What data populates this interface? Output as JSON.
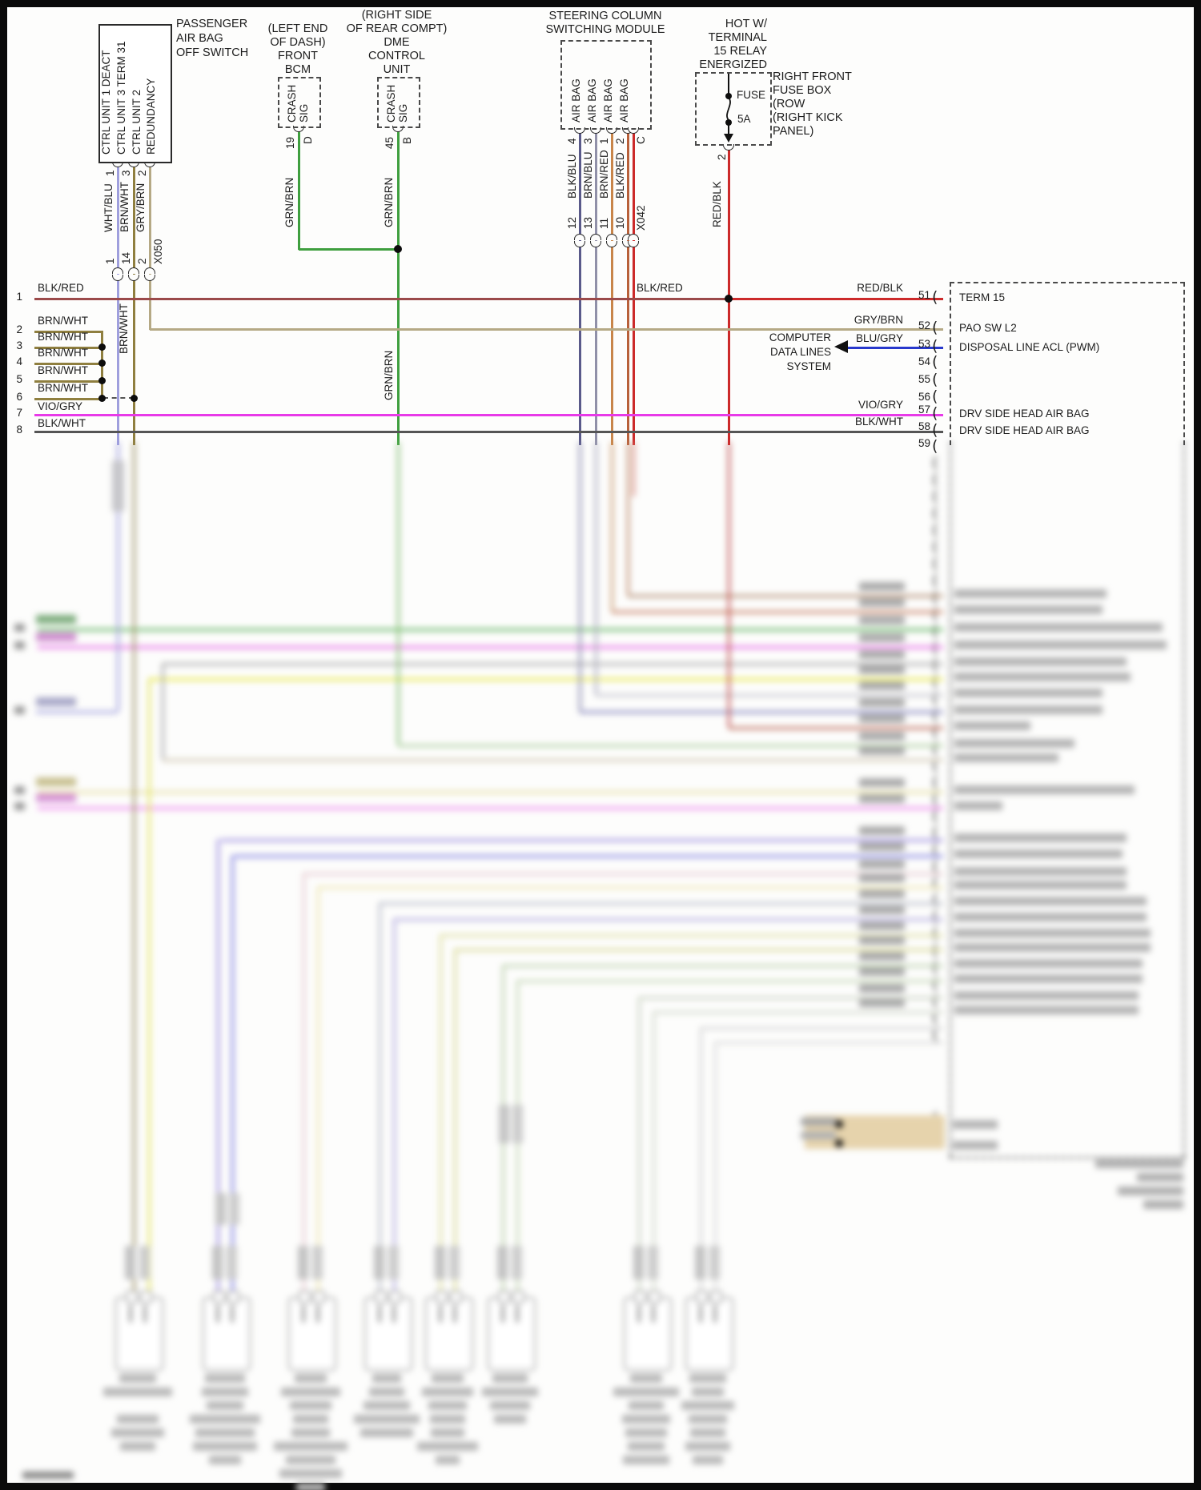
{
  "passenger_switch": {
    "title": [
      "PASSENGER",
      "AIR BAG",
      "OFF SWITCH"
    ],
    "terminals": [
      "CTRL UNIT 1 DEACT",
      "CTRL UNIT 3 TERM 31",
      "CTRL UNIT 2",
      "REDUNDANCY"
    ],
    "pins": [
      "1",
      "3",
      "2"
    ],
    "wire_colors": [
      "WHT/BLU",
      "BRN/WHT",
      "GRY/BRN"
    ],
    "connector_pins": [
      "1",
      "14",
      "2"
    ],
    "connector_id": "X050"
  },
  "front_bcm": {
    "location": [
      "(LEFT END",
      "OF DASH)"
    ],
    "name": [
      "FRONT",
      "BCM"
    ],
    "terminal": [
      "CRASH",
      "SIG"
    ],
    "pin": "19",
    "terminal_letter": "D",
    "wire_color": "GRN/BRN"
  },
  "dme": {
    "location": [
      "(RIGHT SIDE",
      "OF REAR COMPT)"
    ],
    "name": [
      "DME",
      "CONTROL",
      "UNIT"
    ],
    "terminal": [
      "CRASH",
      "SIG"
    ],
    "pin": "45",
    "terminal_letter": "B",
    "wire_color": "GRN/BRN"
  },
  "steering_module": {
    "name": [
      "STEERING COLUMN",
      "SWITCHING MODULE"
    ],
    "terminals": [
      "AIR BAG",
      "AIR BAG",
      "AIR BAG",
      "AIR BAG"
    ],
    "pins": [
      "4",
      "3",
      "1",
      "2",
      "C"
    ],
    "wire_colors": [
      "BLK/BLU",
      "BRN/BLU",
      "BRN/RED",
      "BLK/RED"
    ],
    "connector_pins": [
      "12",
      "13",
      "11",
      "10"
    ],
    "connector_id": "X042"
  },
  "fuse_box": {
    "power_note": [
      "HOT W/",
      "TERMINAL",
      "15 RELAY",
      "ENERGIZED"
    ],
    "fuse_label": "FUSE",
    "rating": "5A",
    "location": [
      "RIGHT FRONT",
      "FUSE BOX",
      "(ROW",
      "(RIGHT KICK",
      "PANEL)"
    ],
    "pin": "2",
    "wire_color": "RED/BLK"
  },
  "left_rows": [
    {
      "num": "1",
      "wire": "BLK/RED"
    },
    {
      "num": "2",
      "wire": "BRN/WHT"
    },
    {
      "num": "3",
      "wire": "BRN/WHT"
    },
    {
      "num": "4",
      "wire": "BRN/WHT"
    },
    {
      "num": "5",
      "wire": "BRN/WHT"
    },
    {
      "num": "6",
      "wire": "BRN/WHT"
    },
    {
      "num": "7",
      "wire": "VIO/GRY"
    },
    {
      "num": "8",
      "wire": "BLK/WHT"
    }
  ],
  "mid_labels": {
    "brn_wht_vertical": "BRN/WHT",
    "grn_brn_bcm": "GRN/BRN",
    "grn_brn_dme": "GRN/BRN",
    "grn_brn_lower": "GRN/BRN",
    "blk_red_junction": "BLK/RED",
    "red_blk_vertical": "RED/BLK"
  },
  "right_connector": {
    "rows": [
      {
        "pin": "51",
        "wire": "RED/BLK",
        "label": "TERM 15"
      },
      {
        "pin": "52",
        "wire": "GRY/BRN",
        "label": "PAO SW L2"
      },
      {
        "pin": "53",
        "wire": "BLU/GRY",
        "label": "DISPOSAL LINE ACL (PWM)"
      },
      {
        "pin": "54",
        "wire": "",
        "label": ""
      },
      {
        "pin": "55",
        "wire": "",
        "label": ""
      },
      {
        "pin": "56",
        "wire": "",
        "label": ""
      },
      {
        "pin": "57",
        "wire": "VIO/GRY",
        "label": "DRV SIDE HEAD AIR BAG"
      },
      {
        "pin": "58",
        "wire": "BLK/WHT",
        "label": "DRV SIDE HEAD AIR BAG"
      },
      {
        "pin": "59",
        "wire": "",
        "label": ""
      }
    ]
  },
  "annotations": {
    "computer_note": [
      "COMPUTER",
      "DATA LINES",
      "SYSTEM"
    ]
  },
  "colors": {
    "blk_red": "#9b4a4a",
    "red_blk": "#cc2a2a",
    "brn_wht": "#8f7f3f",
    "wht_blu": "#9f9fdd",
    "gry_brn": "#b5a985",
    "grn_brn": "#3f9f3f",
    "vio_gry": "#e83ae8",
    "blk_wht": "#555555",
    "blk_blu": "#5a5a8a",
    "brn_blu": "#9090a8",
    "brn_red": "#c8854a",
    "blk_red2": "#b8603a",
    "blu_gry": "#2838cc"
  }
}
